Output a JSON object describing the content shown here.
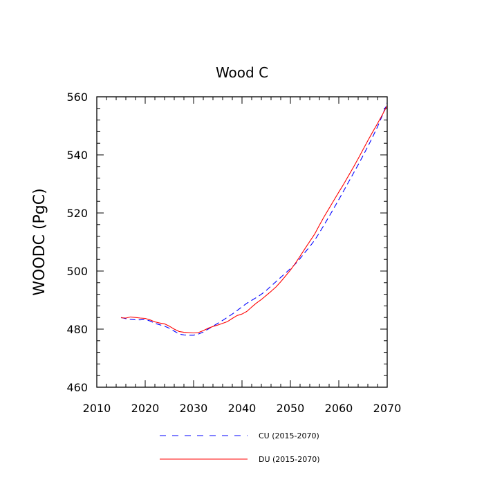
{
  "chart_data": {
    "type": "line",
    "title": "Wood C",
    "xlabel": "",
    "ylabel": "WOODC  (PgC)",
    "xlim": [
      2010,
      2070
    ],
    "ylim": [
      460,
      560
    ],
    "xticks": [
      2010,
      2020,
      2030,
      2040,
      2050,
      2060,
      2070
    ],
    "yticks": [
      460,
      480,
      500,
      520,
      540,
      560
    ],
    "grid": false,
    "legend_position": "bottom",
    "series": [
      {
        "name": "CU (2015-2070)",
        "color": "#0000ff",
        "style": "dashed",
        "x": [
          2015,
          2016,
          2017,
          2018,
          2019,
          2020,
          2021,
          2022,
          2023,
          2024,
          2025,
          2026,
          2027,
          2028,
          2029,
          2030,
          2031,
          2032,
          2033,
          2034,
          2035,
          2036,
          2037,
          2038,
          2039,
          2040,
          2041,
          2042,
          2043,
          2044,
          2045,
          2046,
          2047,
          2048,
          2049,
          2050,
          2051,
          2052,
          2053,
          2054,
          2055,
          2056,
          2057,
          2058,
          2059,
          2060,
          2061,
          2062,
          2063,
          2064,
          2065,
          2066,
          2067,
          2068,
          2069,
          2070
        ],
        "y": [
          484.0,
          483.6,
          483.4,
          483.2,
          483.2,
          483.3,
          482.8,
          482.0,
          481.5,
          481.0,
          480.3,
          479.3,
          478.3,
          478.0,
          477.9,
          477.9,
          478.3,
          479.0,
          480.0,
          481.0,
          482.0,
          483.0,
          484.1,
          485.2,
          486.4,
          487.7,
          488.9,
          489.9,
          490.9,
          492.0,
          493.3,
          494.8,
          496.3,
          497.8,
          499.3,
          500.8,
          502.4,
          504.3,
          506.4,
          508.4,
          510.6,
          513.2,
          516.0,
          518.8,
          521.7,
          524.6,
          527.6,
          530.6,
          533.6,
          536.6,
          539.7,
          542.9,
          546.2,
          549.7,
          553.6,
          558.0
        ]
      },
      {
        "name": "DU (2015-2070)",
        "color": "#ff0000",
        "style": "solid",
        "x": [
          2015,
          2016,
          2017,
          2018,
          2019,
          2020,
          2021,
          2022,
          2023,
          2024,
          2025,
          2026,
          2027,
          2028,
          2029,
          2030,
          2031,
          2032,
          2033,
          2034,
          2035,
          2036,
          2037,
          2038,
          2039,
          2040,
          2041,
          2042,
          2043,
          2044,
          2045,
          2046,
          2047,
          2048,
          2049,
          2050,
          2051,
          2052,
          2053,
          2054,
          2055,
          2056,
          2057,
          2058,
          2059,
          2060,
          2061,
          2062,
          2063,
          2064,
          2065,
          2066,
          2067,
          2068,
          2069,
          2070
        ],
        "y": [
          483.9,
          483.8,
          484.2,
          484.0,
          483.8,
          483.7,
          483.2,
          482.5,
          482.1,
          481.8,
          481.0,
          480.0,
          479.2,
          478.9,
          478.8,
          478.7,
          478.8,
          479.5,
          480.3,
          480.9,
          481.4,
          482.0,
          482.6,
          483.7,
          484.7,
          485.2,
          486.1,
          487.6,
          489.0,
          490.2,
          491.6,
          493.0,
          494.5,
          496.3,
          498.3,
          500.3,
          502.6,
          505.1,
          507.7,
          510.2,
          512.7,
          515.8,
          518.8,
          521.6,
          524.4,
          527.2,
          529.9,
          532.8,
          535.7,
          538.7,
          541.8,
          544.9,
          547.9,
          550.8,
          553.8,
          557.0
        ]
      }
    ]
  }
}
